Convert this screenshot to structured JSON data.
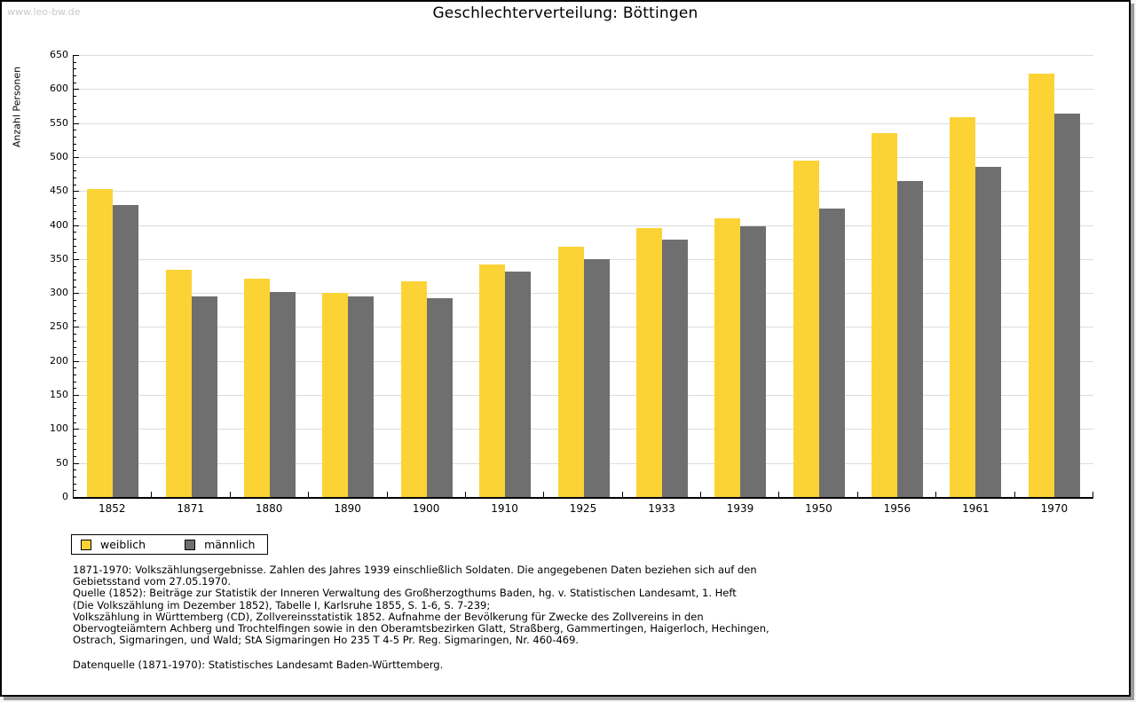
{
  "page": {
    "watermark": "www.leo-bw.de",
    "title": "Geschlechterverteilung: Böttingen"
  },
  "chart_data": {
    "type": "bar",
    "title": "Geschlechterverteilung: Böttingen",
    "xlabel": "",
    "ylabel": "Anzahl Personen",
    "ylim": [
      0,
      650
    ],
    "ytick_step": 50,
    "ytick_minor_step": 10,
    "grid": true,
    "legend_position": "bottom-left",
    "categories": [
      "1852",
      "1871",
      "1880",
      "1890",
      "1900",
      "1910",
      "1925",
      "1933",
      "1939",
      "1950",
      "1956",
      "1961",
      "1970"
    ],
    "series": [
      {
        "name": "weiblich",
        "color": "#FCD335",
        "values": [
          453,
          334,
          321,
          300,
          317,
          342,
          368,
          395,
          410,
          495,
          535,
          559,
          622
        ]
      },
      {
        "name": "männlich",
        "color": "#6F6F6F",
        "values": [
          430,
          295,
          302,
          295,
          293,
          331,
          350,
          378,
          398,
          424,
          465,
          486,
          564
        ]
      }
    ]
  },
  "colors": {
    "gridline": "#dcdcdc",
    "axis": "#000000",
    "watermark": "#c9c9c9"
  },
  "footnote": {
    "lines": [
      "1871-1970: Volkszählungsergebnisse. Zahlen des Jahres 1939 einschließlich Soldaten. Die angegebenen Daten beziehen sich auf den",
      "Gebietsstand vom 27.05.1970.",
      "Quelle (1852): Beiträge zur Statistik der Inneren Verwaltung des Großherzogthums Baden, hg. v. Statistischen Landesamt, 1. Heft",
      "(Die Volkszählung im Dezember 1852), Tabelle I, Karlsruhe 1855, S. 1-6, S. 7-239;",
      "Volkszählung in Württemberg (CD), Zollvereinsstatistik 1852. Aufnahme der Bevölkerung für Zwecke des Zollvereins in den",
      "Obervogteiämtern Achberg und Trochtelfingen sowie in den Oberamtsbezirken Glatt, Straßberg, Gammertingen, Haigerloch, Hechingen,",
      "Ostrach, Sigmaringen, und Wald; StA Sigmaringen Ho 235 T 4-5 Pr. Reg. Sigmaringen, Nr. 460-469."
    ],
    "datasource": "Datenquelle (1871-1970): Statistisches Landesamt Baden-Württemberg."
  }
}
